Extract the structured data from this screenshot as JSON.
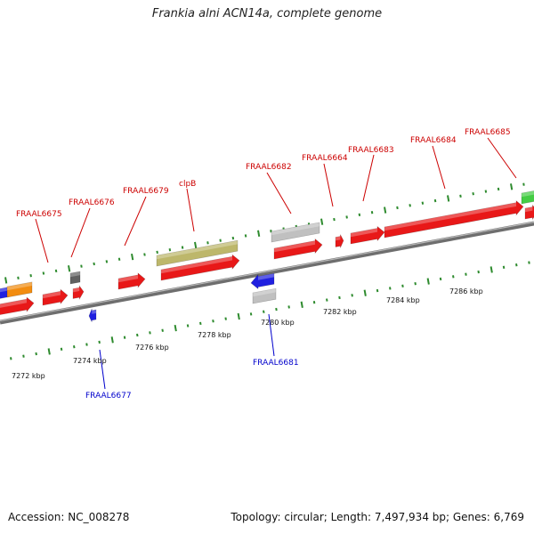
{
  "header": {
    "title": "Frankia alni ACN14a, complete genome"
  },
  "footer": {
    "accession": "Accession: NC_008278",
    "summary": "Topology: circular; Length: 7,497,934 bp; Genes: 6,769"
  },
  "colors": {
    "backbone": "#7a7a7a",
    "tick": "#2e8b2e",
    "forward_label": "#cc0000",
    "reverse_label": "#0000cc",
    "cds": "#e81818",
    "trna": "#f28c10",
    "rrna": "#2020e0",
    "pseudo": "#c0c0c0",
    "misc_dark": "#606060",
    "clpB_like": "#bdb76b",
    "green": "#44cc44"
  },
  "scale_labels": [
    {
      "text": "7272 kbp",
      "side": "lower"
    },
    {
      "text": "7274 kbp",
      "side": "lower"
    },
    {
      "text": "7276 kbp",
      "side": "lower"
    },
    {
      "text": "7278 kbp",
      "side": "lower"
    },
    {
      "text": "7280 kbp",
      "side": "upper"
    },
    {
      "text": "7282 kbp",
      "side": "upper"
    },
    {
      "text": "7284 kbp",
      "side": "upper"
    },
    {
      "text": "7286 kbp",
      "side": "upper"
    }
  ],
  "forward_labels": [
    "FRAAL6675",
    "FRAAL6676",
    "FRAAL6679",
    "clpB",
    "FRAAL6682",
    "FRAAL6664",
    "FRAAL6683",
    "FRAAL6684",
    "FRAAL6685"
  ],
  "reverse_labels": [
    "FRAAL6677",
    "FRAAL6681"
  ]
}
